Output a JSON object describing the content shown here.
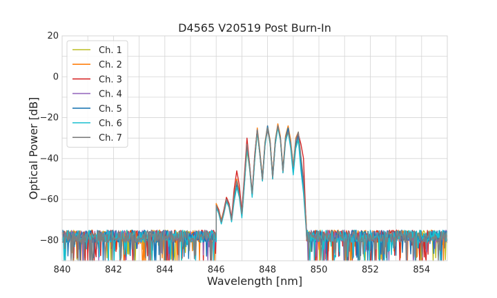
{
  "chart_data": {
    "type": "line",
    "title": "D4565 V20519 Post Burn-In",
    "xlabel": "Wavelength [nm]",
    "ylabel": "Optical Power [dB]",
    "xlim": [
      840,
      855
    ],
    "ylim": [
      -90,
      20
    ],
    "xticks": [
      840,
      842,
      844,
      846,
      848,
      850,
      852,
      854
    ],
    "yticks": [
      20,
      0,
      -20,
      -40,
      -60,
      -80
    ],
    "grid": true,
    "legend_position": "upper-left",
    "noise_floor_db": -78,
    "series": [
      {
        "name": "Ch. 1",
        "color": "#bcbd22",
        "x": [
          846.0,
          846.1,
          846.2,
          846.3,
          846.4,
          846.5,
          846.6,
          846.7,
          846.8,
          846.9,
          847.0,
          847.1,
          847.2,
          847.3,
          847.4,
          847.5,
          847.6,
          847.7,
          847.8,
          847.9,
          848.0,
          848.1,
          848.2,
          848.3,
          848.4,
          848.5,
          848.6,
          848.7,
          848.8,
          848.9,
          849.0,
          849.1,
          849.2,
          849.3,
          849.4,
          849.5
        ],
        "y": [
          -63,
          -66,
          -71,
          -66,
          -60,
          -63,
          -70,
          -60,
          -52,
          -58,
          -68,
          -52,
          -36,
          -45,
          -58,
          -41,
          -27,
          -38,
          -50,
          -33,
          -25,
          -33,
          -49,
          -32,
          -24,
          -31,
          -46,
          -31,
          -25,
          -33,
          -47,
          -34,
          -29,
          -44,
          -55,
          -70
        ]
      },
      {
        "name": "Ch. 2",
        "color": "#ff7f0e",
        "x": [
          846.0,
          846.1,
          846.2,
          846.3,
          846.4,
          846.5,
          846.6,
          846.7,
          846.8,
          846.9,
          847.0,
          847.1,
          847.2,
          847.3,
          847.4,
          847.5,
          847.6,
          847.7,
          847.8,
          847.9,
          848.0,
          848.1,
          848.2,
          848.3,
          848.4,
          848.5,
          848.6,
          848.7,
          848.8,
          848.9,
          849.0,
          849.1,
          849.2,
          849.3,
          849.4,
          849.5
        ],
        "y": [
          -62,
          -65,
          -70,
          -65,
          -59,
          -62,
          -69,
          -58,
          -50,
          -56,
          -66,
          -50,
          -33,
          -43,
          -57,
          -39,
          -25,
          -36,
          -49,
          -32,
          -24,
          -31,
          -48,
          -31,
          -23,
          -29,
          -45,
          -29,
          -24,
          -31,
          -44,
          -30,
          -27,
          -40,
          -52,
          -70
        ]
      },
      {
        "name": "Ch. 3",
        "color": "#d62728",
        "x": [
          846.0,
          846.1,
          846.2,
          846.3,
          846.4,
          846.5,
          846.6,
          846.7,
          846.8,
          846.9,
          847.0,
          847.1,
          847.2,
          847.3,
          847.4,
          847.5,
          847.6,
          847.7,
          847.8,
          847.9,
          848.0,
          848.1,
          848.2,
          848.3,
          848.4,
          848.5,
          848.6,
          848.7,
          848.8,
          848.9,
          849.0,
          849.1,
          849.2,
          849.3,
          849.4,
          849.5
        ],
        "y": [
          -63,
          -65,
          -71,
          -65,
          -59,
          -62,
          -69,
          -55,
          -46,
          -53,
          -66,
          -48,
          -30,
          -43,
          -57,
          -38,
          -26,
          -38,
          -51,
          -33,
          -26,
          -32,
          -50,
          -33,
          -24,
          -30,
          -47,
          -30,
          -26,
          -33,
          -45,
          -31,
          -28,
          -33,
          -40,
          -72
        ]
      },
      {
        "name": "Ch. 4",
        "color": "#9467bd",
        "x": [
          846.0,
          846.1,
          846.2,
          846.3,
          846.4,
          846.5,
          846.6,
          846.7,
          846.8,
          846.9,
          847.0,
          847.1,
          847.2,
          847.3,
          847.4,
          847.5,
          847.6,
          847.7,
          847.8,
          847.9,
          848.0,
          848.1,
          848.2,
          848.3,
          848.4,
          848.5,
          848.6,
          848.7,
          848.8,
          848.9,
          849.0,
          849.1,
          849.2,
          849.3,
          849.4,
          849.5
        ],
        "y": [
          -63,
          -66,
          -71,
          -66,
          -60,
          -63,
          -70,
          -59,
          -51,
          -57,
          -68,
          -51,
          -34,
          -44,
          -58,
          -40,
          -26,
          -37,
          -50,
          -33,
          -25,
          -32,
          -49,
          -32,
          -24,
          -30,
          -46,
          -31,
          -26,
          -33,
          -46,
          -33,
          -29,
          -42,
          -53,
          -72
        ]
      },
      {
        "name": "Ch. 5",
        "color": "#1f77b4",
        "x": [
          846.0,
          846.1,
          846.2,
          846.3,
          846.4,
          846.5,
          846.6,
          846.7,
          846.8,
          846.9,
          847.0,
          847.1,
          847.2,
          847.3,
          847.4,
          847.5,
          847.6,
          847.7,
          847.8,
          847.9,
          848.0,
          848.1,
          848.2,
          848.3,
          848.4,
          848.5,
          848.6,
          848.7,
          848.8,
          848.9,
          849.0,
          849.1,
          849.2,
          849.3,
          849.4,
          849.5
        ],
        "y": [
          -63,
          -66,
          -71,
          -66,
          -60,
          -63,
          -70,
          -60,
          -53,
          -58,
          -68,
          -52,
          -34,
          -44,
          -58,
          -40,
          -26,
          -37,
          -50,
          -33,
          -24,
          -32,
          -49,
          -32,
          -24,
          -30,
          -46,
          -30,
          -25,
          -33,
          -47,
          -33,
          -29,
          -43,
          -55,
          -72
        ]
      },
      {
        "name": "Ch. 6",
        "color": "#17becf",
        "x": [
          846.0,
          846.1,
          846.2,
          846.3,
          846.4,
          846.5,
          846.6,
          846.7,
          846.8,
          846.9,
          847.0,
          847.1,
          847.2,
          847.3,
          847.4,
          847.5,
          847.6,
          847.7,
          847.8,
          847.9,
          848.0,
          848.1,
          848.2,
          848.3,
          848.4,
          848.5,
          848.6,
          848.7,
          848.8,
          848.9,
          849.0,
          849.1,
          849.2,
          849.3,
          849.4,
          849.5
        ],
        "y": [
          -64,
          -67,
          -72,
          -67,
          -61,
          -64,
          -71,
          -61,
          -54,
          -59,
          -69,
          -53,
          -35,
          -45,
          -59,
          -41,
          -27,
          -38,
          -51,
          -34,
          -25,
          -33,
          -50,
          -33,
          -25,
          -31,
          -47,
          -32,
          -27,
          -35,
          -48,
          -35,
          -31,
          -46,
          -57,
          -74
        ]
      },
      {
        "name": "Ch. 7",
        "color": "#7f7f7f",
        "x": [
          846.0,
          846.1,
          846.2,
          846.3,
          846.4,
          846.5,
          846.6,
          846.7,
          846.8,
          846.9,
          847.0,
          847.1,
          847.2,
          847.3,
          847.4,
          847.5,
          847.6,
          847.7,
          847.8,
          847.9,
          848.0,
          848.1,
          848.2,
          848.3,
          848.4,
          848.5,
          848.6,
          848.7,
          848.8,
          848.9,
          849.0,
          849.1,
          849.2,
          849.3,
          849.4,
          849.5
        ],
        "y": [
          -63,
          -66,
          -71,
          -66,
          -60,
          -63,
          -70,
          -58,
          -51,
          -57,
          -67,
          -50,
          -33,
          -44,
          -57,
          -39,
          -26,
          -37,
          -50,
          -32,
          -25,
          -32,
          -49,
          -31,
          -24,
          -30,
          -46,
          -30,
          -27,
          -32,
          -44,
          -31,
          -27,
          -39,
          -50,
          -72
        ]
      }
    ]
  }
}
